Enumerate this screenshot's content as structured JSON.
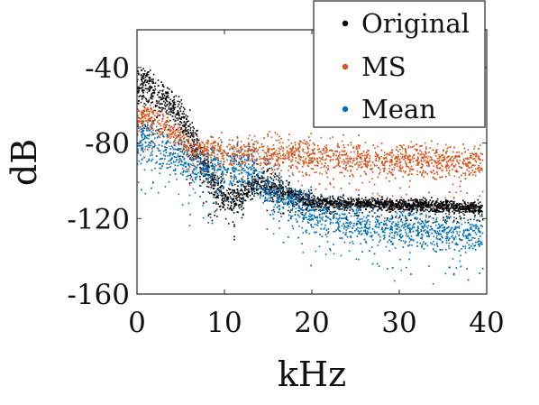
{
  "chart_data": {
    "type": "scatter",
    "title": "",
    "xlabel": "kHz",
    "ylabel": "dB",
    "xlim": [
      0,
      40
    ],
    "ylim": [
      -160,
      -20
    ],
    "xticks": [
      0,
      10,
      20,
      30,
      40
    ],
    "xtick_labels": [
      "0",
      "10",
      "20",
      "30",
      "40"
    ],
    "yticks": [
      -160,
      -120,
      -80,
      -40
    ],
    "ytick_labels": [
      "-160",
      "-120",
      "-80",
      "-40"
    ],
    "grid": false,
    "legend_position": "top-right",
    "series": [
      {
        "name": "Original",
        "color": "#000000",
        "x": [
          0,
          1,
          2,
          3,
          4,
          5,
          6,
          7,
          8,
          9,
          10,
          11,
          12,
          13,
          14,
          15,
          16,
          17,
          18,
          19,
          20,
          22,
          24,
          26,
          28,
          30,
          32,
          34,
          36,
          38,
          40
        ],
        "center": [
          -50,
          -48,
          -52,
          -56,
          -60,
          -66,
          -74,
          -84,
          -95,
          -104,
          -108,
          -109,
          -107,
          -104,
          -101,
          -102,
          -104,
          -106,
          -108,
          -110,
          -111,
          -112,
          -112,
          -112,
          -112,
          -113,
          -113,
          -113,
          -114,
          -114,
          -115
        ],
        "spread": [
          8,
          8,
          8,
          8,
          8,
          8,
          8,
          8,
          8,
          7,
          7,
          7,
          6,
          6,
          6,
          6,
          5,
          5,
          4,
          4,
          4,
          3,
          3,
          3,
          3,
          3,
          3,
          3,
          3,
          3,
          3
        ]
      },
      {
        "name": "MS",
        "color": "#d95319",
        "x": [
          0,
          1,
          2,
          3,
          4,
          5,
          6,
          7,
          8,
          9,
          10,
          12,
          14,
          16,
          18,
          20,
          22,
          24,
          26,
          28,
          30,
          32,
          34,
          36,
          38,
          40
        ],
        "center": [
          -68,
          -66,
          -67,
          -70,
          -74,
          -78,
          -82,
          -84,
          -84,
          -84,
          -85,
          -85,
          -85,
          -86,
          -86,
          -87,
          -87,
          -88,
          -88,
          -89,
          -89,
          -89,
          -90,
          -90,
          -90,
          -90
        ],
        "spread": [
          6,
          6,
          6,
          6,
          6,
          6,
          6,
          6,
          6,
          7,
          7,
          7,
          7,
          8,
          8,
          8,
          8,
          8,
          8,
          8,
          8,
          8,
          8,
          8,
          8,
          8
        ]
      },
      {
        "name": "Mean",
        "color": "#0072bd",
        "x": [
          0,
          1,
          2,
          3,
          4,
          5,
          6,
          7,
          8,
          9,
          10,
          11,
          12,
          13,
          14,
          15,
          16,
          18,
          20,
          22,
          24,
          26,
          28,
          30,
          32,
          34,
          36,
          38,
          40
        ],
        "center": [
          -80,
          -78,
          -80,
          -84,
          -86,
          -88,
          -90,
          -92,
          -94,
          -95,
          -94,
          -92,
          -92,
          -95,
          -99,
          -103,
          -107,
          -112,
          -117,
          -120,
          -122,
          -123,
          -124,
          -125,
          -126,
          -127,
          -128,
          -128,
          -129
        ],
        "spread": [
          10,
          10,
          10,
          10,
          10,
          10,
          10,
          10,
          10,
          10,
          10,
          10,
          10,
          10,
          10,
          10,
          10,
          10,
          9,
          9,
          9,
          9,
          9,
          9,
          9,
          9,
          9,
          9,
          9
        ]
      }
    ]
  },
  "legend": {
    "items": [
      {
        "label": "Original",
        "color": "#000000"
      },
      {
        "label": "MS",
        "color": "#d95319"
      },
      {
        "label": "Mean",
        "color": "#0072bd"
      }
    ]
  }
}
